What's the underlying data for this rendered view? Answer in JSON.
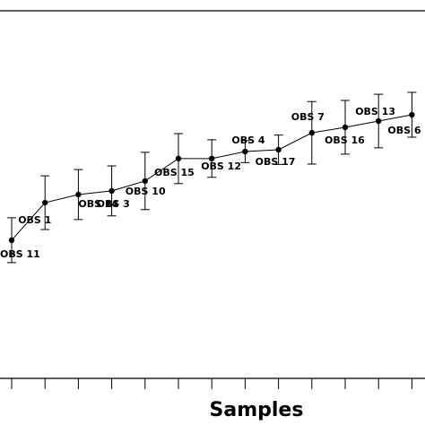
{
  "chart_data": {
    "type": "line",
    "x_label": "Samples",
    "categories": [
      "OBS 11",
      "OBS 1",
      "OBS 14",
      "OBS 3",
      "OBS 10",
      "OBS 15",
      "OBS 12",
      "OBS 4",
      "OBS 17",
      "OBS 7",
      "OBS 16",
      "OBS 13",
      "OBS 6"
    ],
    "series": [
      {
        "color": "#000000",
        "values": [
          37.6,
          47.8,
          50.0,
          51.0,
          53.7,
          59.8,
          59.8,
          61.7,
          62.2,
          66.8,
          68.3,
          70.0,
          71.7
        ],
        "errors": [
          6.1,
          7.3,
          6.8,
          6.8,
          7.8,
          6.8,
          5.1,
          3.0,
          4.0,
          8.5,
          7.3,
          7.3,
          6.1
        ]
      }
    ],
    "ylim": [
      0,
      100
    ]
  }
}
